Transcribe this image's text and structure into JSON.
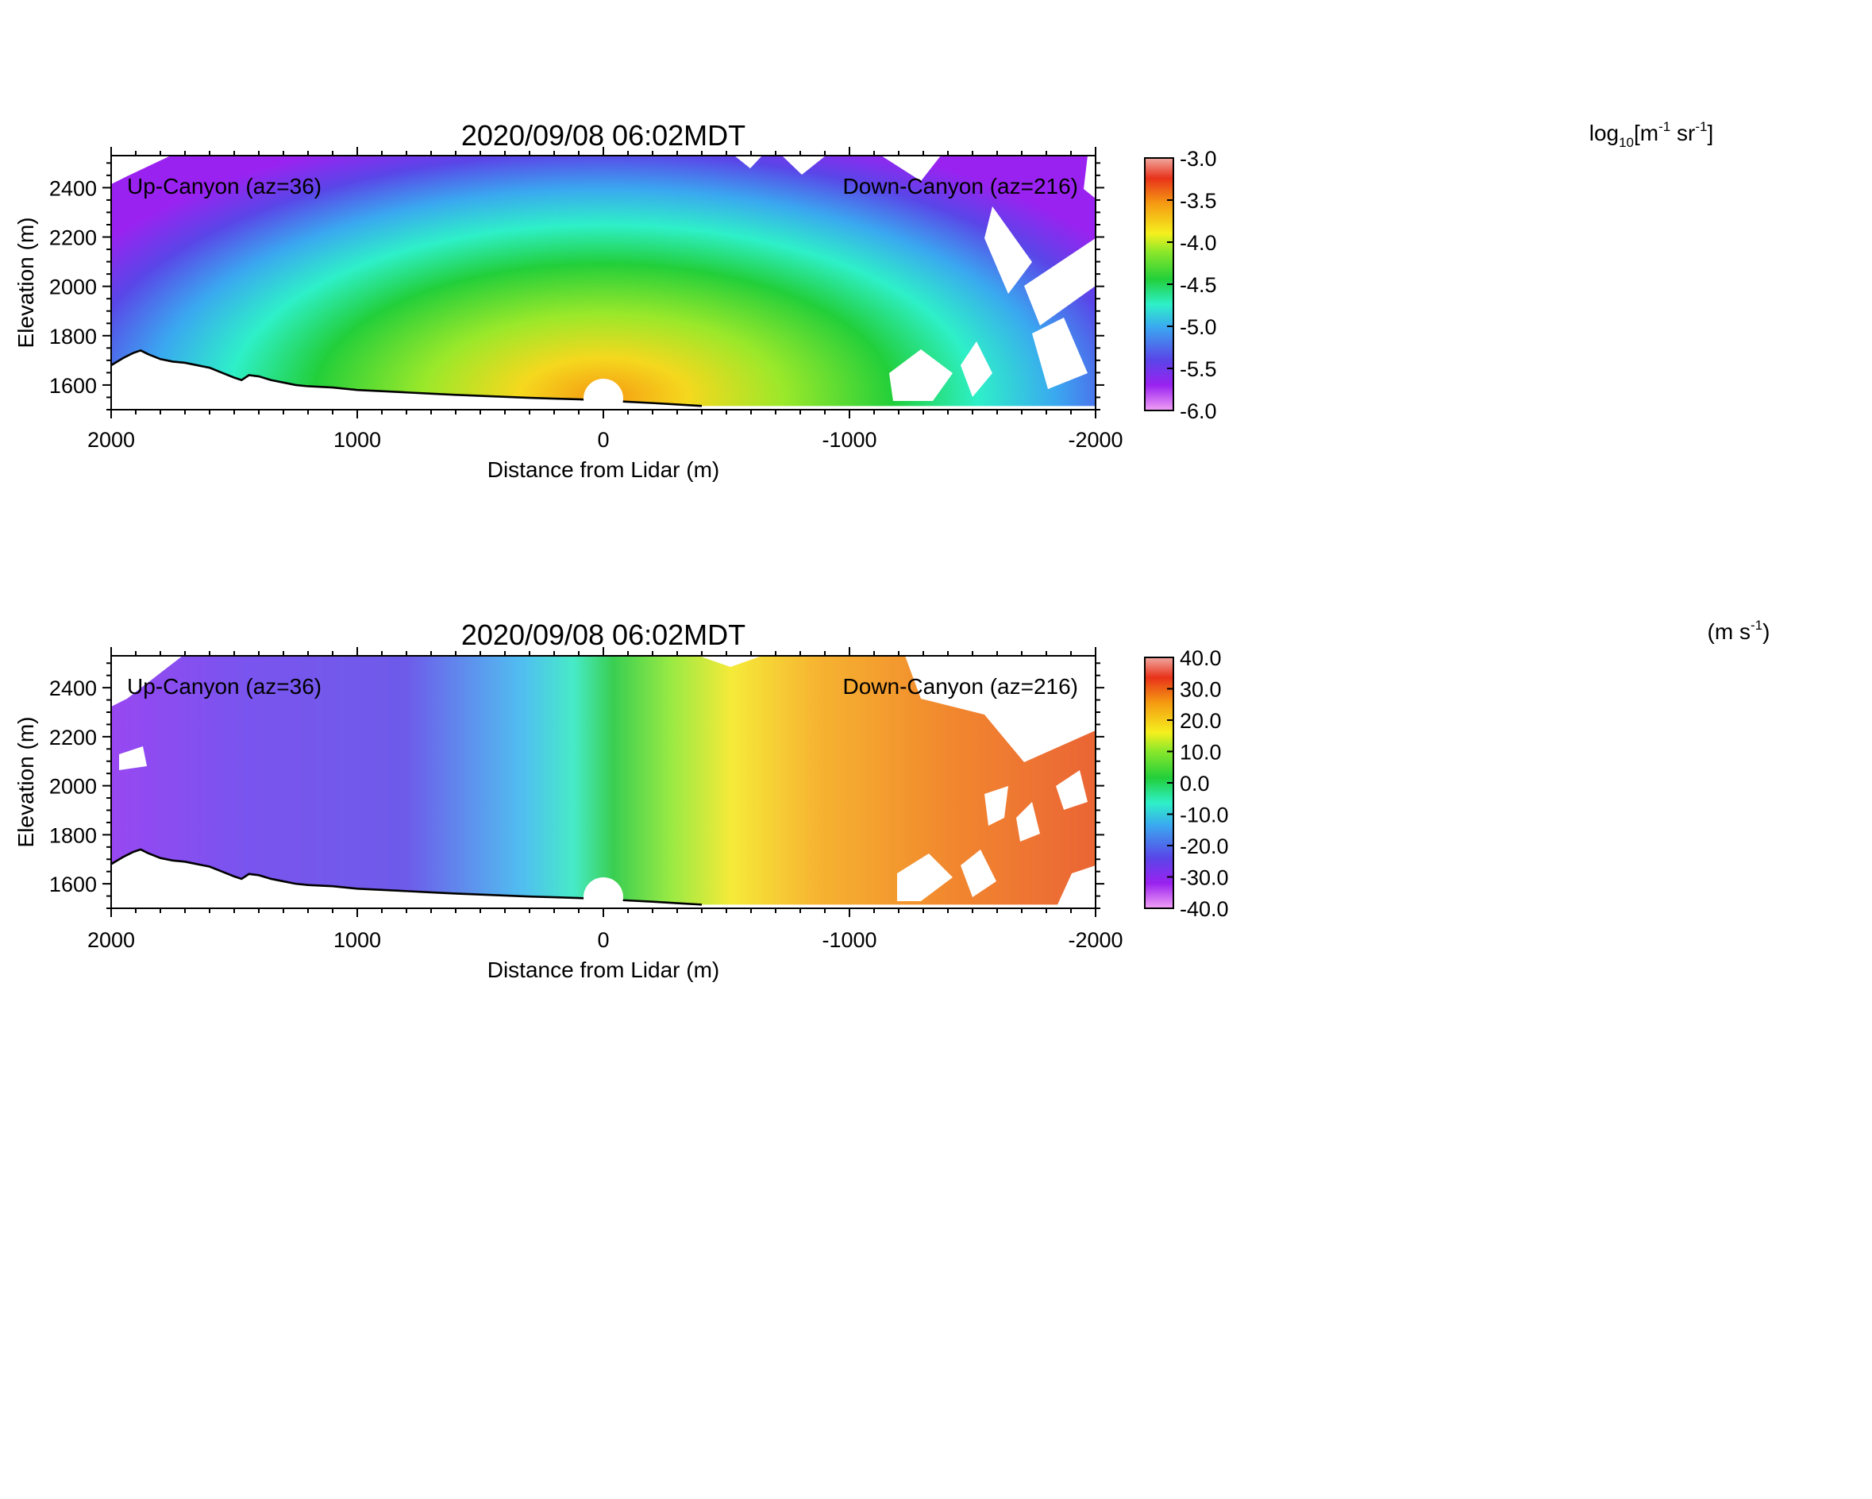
{
  "chart_data": [
    {
      "type": "heatmap",
      "title": "2020/09/08 06:02MDT",
      "xlabel": "Distance from Lidar (m)",
      "ylabel": "Elevation (m)",
      "xlim": [
        2000,
        -2000
      ],
      "ylim": [
        1500,
        2530
      ],
      "x_ticks": [
        2000,
        1000,
        0,
        -1000,
        -2000
      ],
      "y_ticks": [
        1600,
        1800,
        2000,
        2200,
        2400
      ],
      "annotations": {
        "left": "Up-Canyon (az=36)",
        "right": "Down-Canyon (az=216)"
      },
      "colorbar": {
        "label_base": "log",
        "label_sub": "10",
        "label_main": "[m",
        "label_sup1": "-1",
        "label_mid": " sr",
        "label_sup2": "-1",
        "label_end": "]",
        "range": [
          -6.0,
          -3.0
        ],
        "ticks": [
          "-3.0",
          "-3.5",
          "-4.0",
          "-4.5",
          "-5.0",
          "-5.5",
          "-6.0"
        ]
      },
      "field": "backscatter",
      "terrain": [
        [
          2000,
          1680
        ],
        [
          1950,
          1710
        ],
        [
          1910,
          1730
        ],
        [
          1880,
          1740
        ],
        [
          1850,
          1725
        ],
        [
          1800,
          1705
        ],
        [
          1750,
          1695
        ],
        [
          1700,
          1690
        ],
        [
          1650,
          1680
        ],
        [
          1600,
          1670
        ],
        [
          1550,
          1650
        ],
        [
          1500,
          1630
        ],
        [
          1470,
          1620
        ],
        [
          1440,
          1640
        ],
        [
          1400,
          1635
        ],
        [
          1350,
          1620
        ],
        [
          1300,
          1610
        ],
        [
          1250,
          1600
        ],
        [
          1200,
          1595
        ],
        [
          1100,
          1590
        ],
        [
          1000,
          1580
        ],
        [
          900,
          1575
        ],
        [
          800,
          1570
        ],
        [
          700,
          1565
        ],
        [
          600,
          1560
        ],
        [
          500,
          1556
        ],
        [
          400,
          1552
        ],
        [
          300,
          1548
        ],
        [
          200,
          1545
        ],
        [
          100,
          1542
        ],
        [
          0,
          1537
        ],
        [
          -100,
          1532
        ],
        [
          -200,
          1527
        ],
        [
          -300,
          1521
        ],
        [
          -400,
          1515
        ]
      ]
    },
    {
      "type": "heatmap",
      "title": "2020/09/08 06:02MDT",
      "xlabel": "Distance from Lidar (m)",
      "ylabel": "Elevation (m)",
      "xlim": [
        2000,
        -2000
      ],
      "ylim": [
        1500,
        2530
      ],
      "x_ticks": [
        2000,
        1000,
        0,
        -1000,
        -2000
      ],
      "y_ticks": [
        1600,
        1800,
        2000,
        2200,
        2400
      ],
      "annotations": {
        "left": "Up-Canyon (az=36)",
        "right": "Down-Canyon (az=216)"
      },
      "colorbar": {
        "label_base": "(m s",
        "label_sup1": "-1",
        "label_end": ")",
        "range": [
          -40.0,
          40.0
        ],
        "ticks": [
          "40.0",
          "30.0",
          "20.0",
          "10.0",
          "0.0",
          "-10.0",
          "-20.0",
          "-30.0",
          "-40.0"
        ]
      },
      "field": "radial_velocity",
      "terrain": [
        [
          2000,
          1680
        ],
        [
          1950,
          1710
        ],
        [
          1910,
          1730
        ],
        [
          1880,
          1740
        ],
        [
          1850,
          1725
        ],
        [
          1800,
          1705
        ],
        [
          1750,
          1695
        ],
        [
          1700,
          1690
        ],
        [
          1650,
          1680
        ],
        [
          1600,
          1670
        ],
        [
          1550,
          1650
        ],
        [
          1500,
          1630
        ],
        [
          1470,
          1620
        ],
        [
          1440,
          1640
        ],
        [
          1400,
          1635
        ],
        [
          1350,
          1620
        ],
        [
          1300,
          1610
        ],
        [
          1250,
          1600
        ],
        [
          1200,
          1595
        ],
        [
          1100,
          1590
        ],
        [
          1000,
          1580
        ],
        [
          900,
          1575
        ],
        [
          800,
          1570
        ],
        [
          700,
          1565
        ],
        [
          600,
          1560
        ],
        [
          500,
          1556
        ],
        [
          400,
          1552
        ],
        [
          300,
          1548
        ],
        [
          200,
          1545
        ],
        [
          100,
          1542
        ],
        [
          0,
          1537
        ],
        [
          -100,
          1532
        ],
        [
          -200,
          1527
        ],
        [
          -300,
          1521
        ],
        [
          -400,
          1515
        ]
      ]
    }
  ]
}
